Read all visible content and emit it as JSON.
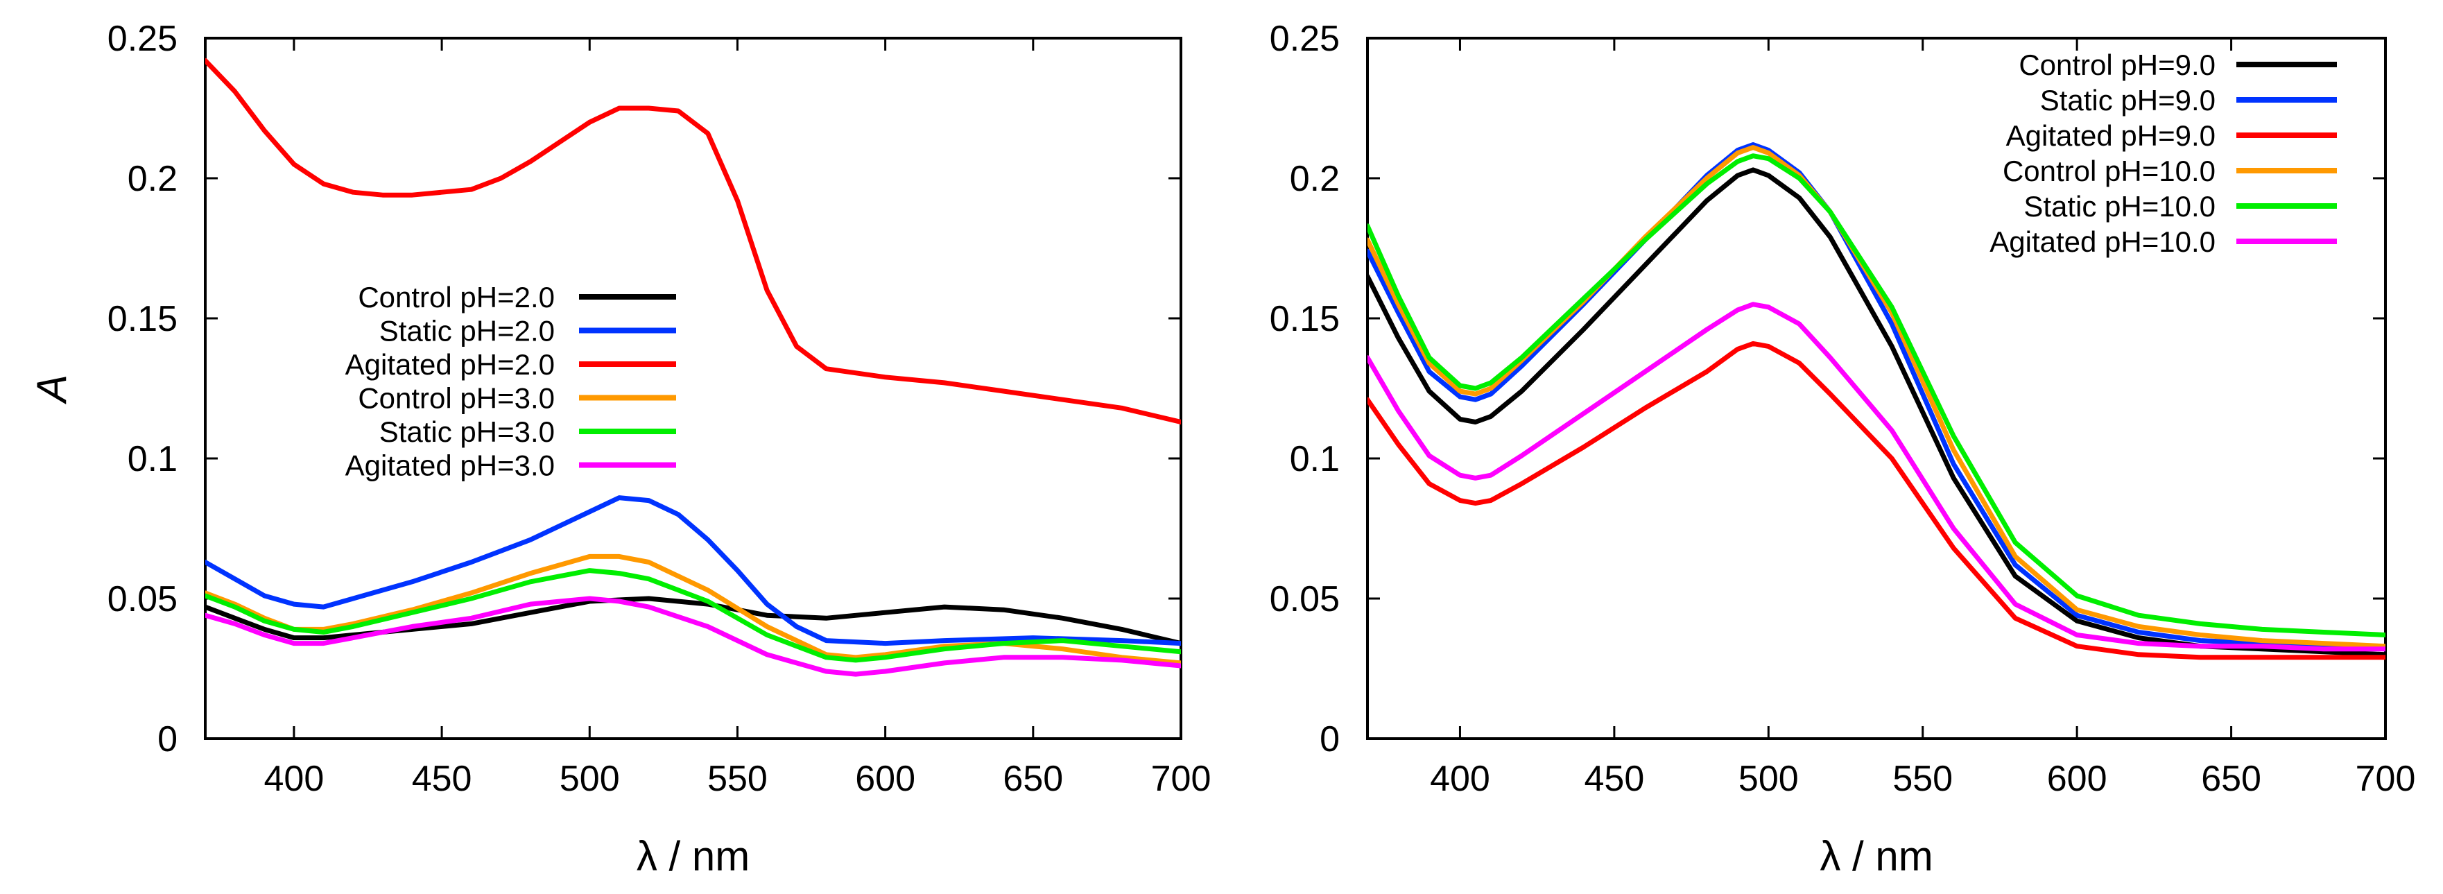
{
  "chart_data": [
    {
      "type": "line",
      "title": "",
      "xlabel": "λ / nm",
      "ylabel": "A",
      "xlim": [
        370,
        700
      ],
      "ylim": [
        0,
        0.25
      ],
      "xticks": [
        "400",
        "450",
        "500",
        "550",
        "600",
        "650",
        "700"
      ],
      "yticks": [
        "0",
        "0.05",
        "0.1",
        "0.15",
        "0.2",
        "0.25"
      ],
      "legend_position": "middle-left",
      "series": [
        {
          "name": "Control pH=2.0",
          "color": "#000000",
          "x": [
            370,
            380,
            390,
            400,
            410,
            420,
            440,
            460,
            480,
            500,
            520,
            540,
            560,
            580,
            600,
            620,
            640,
            660,
            680,
            700
          ],
          "y": [
            0.047,
            0.043,
            0.039,
            0.036,
            0.036,
            0.037,
            0.039,
            0.041,
            0.045,
            0.049,
            0.05,
            0.048,
            0.044,
            0.043,
            0.045,
            0.047,
            0.046,
            0.043,
            0.039,
            0.034
          ]
        },
        {
          "name": "Static pH=2.0",
          "color": "#0033ff",
          "x": [
            370,
            380,
            390,
            400,
            410,
            420,
            440,
            460,
            480,
            500,
            510,
            520,
            530,
            540,
            550,
            560,
            570,
            580,
            600,
            620,
            650,
            680,
            700
          ],
          "y": [
            0.063,
            0.057,
            0.051,
            0.048,
            0.047,
            0.05,
            0.056,
            0.063,
            0.071,
            0.081,
            0.086,
            0.085,
            0.08,
            0.071,
            0.06,
            0.048,
            0.04,
            0.035,
            0.034,
            0.035,
            0.036,
            0.035,
            0.034
          ]
        },
        {
          "name": "Agitated pH=2.0",
          "color": "#ff0000",
          "x": [
            370,
            380,
            390,
            400,
            410,
            420,
            430,
            440,
            450,
            460,
            470,
            480,
            490,
            500,
            510,
            520,
            530,
            540,
            550,
            560,
            570,
            580,
            600,
            620,
            640,
            660,
            680,
            700
          ],
          "y": [
            0.242,
            0.231,
            0.217,
            0.205,
            0.198,
            0.195,
            0.194,
            0.194,
            0.195,
            0.196,
            0.2,
            0.206,
            0.213,
            0.22,
            0.225,
            0.225,
            0.224,
            0.216,
            0.192,
            0.16,
            0.14,
            0.132,
            0.129,
            0.127,
            0.124,
            0.121,
            0.118,
            0.113
          ]
        },
        {
          "name": "Control pH=3.0",
          "color": "#ff9900",
          "x": [
            370,
            380,
            390,
            400,
            410,
            420,
            440,
            460,
            480,
            500,
            510,
            520,
            540,
            560,
            580,
            590,
            600,
            620,
            640,
            660,
            680,
            700
          ],
          "y": [
            0.052,
            0.048,
            0.043,
            0.039,
            0.039,
            0.041,
            0.046,
            0.052,
            0.059,
            0.065,
            0.065,
            0.063,
            0.053,
            0.04,
            0.03,
            0.029,
            0.03,
            0.033,
            0.034,
            0.032,
            0.029,
            0.027
          ]
        },
        {
          "name": "Static pH=3.0",
          "color": "#00ee00",
          "x": [
            370,
            380,
            390,
            400,
            410,
            420,
            440,
            460,
            480,
            500,
            510,
            520,
            540,
            560,
            580,
            590,
            600,
            620,
            640,
            660,
            680,
            700
          ],
          "y": [
            0.051,
            0.047,
            0.042,
            0.039,
            0.038,
            0.04,
            0.045,
            0.05,
            0.056,
            0.06,
            0.059,
            0.057,
            0.049,
            0.037,
            0.029,
            0.028,
            0.029,
            0.032,
            0.034,
            0.035,
            0.033,
            0.031
          ]
        },
        {
          "name": "Agitated pH=3.0",
          "color": "#ff00ff",
          "x": [
            370,
            380,
            390,
            400,
            410,
            420,
            440,
            460,
            480,
            500,
            510,
            520,
            540,
            560,
            580,
            590,
            600,
            620,
            640,
            660,
            680,
            700
          ],
          "y": [
            0.044,
            0.041,
            0.037,
            0.034,
            0.034,
            0.036,
            0.04,
            0.043,
            0.048,
            0.05,
            0.049,
            0.047,
            0.04,
            0.03,
            0.024,
            0.023,
            0.024,
            0.027,
            0.029,
            0.029,
            0.028,
            0.026
          ]
        }
      ]
    },
    {
      "type": "line",
      "title": "",
      "xlabel": "λ / nm",
      "ylabel": "",
      "xlim": [
        370,
        700
      ],
      "ylim": [
        0,
        0.25
      ],
      "xticks": [
        "400",
        "450",
        "500",
        "550",
        "600",
        "650",
        "700"
      ],
      "yticks": [
        "0",
        "0.05",
        "0.1",
        "0.15",
        "0.2",
        "0.25"
      ],
      "legend_position": "top-right",
      "series": [
        {
          "name": "Control pH=9.0",
          "color": "#000000",
          "x": [
            370,
            380,
            390,
            400,
            405,
            410,
            420,
            440,
            460,
            480,
            490,
            495,
            500,
            510,
            520,
            540,
            560,
            580,
            600,
            620,
            640,
            660,
            680,
            700
          ],
          "y": [
            0.165,
            0.143,
            0.124,
            0.114,
            0.113,
            0.115,
            0.124,
            0.146,
            0.169,
            0.192,
            0.201,
            0.203,
            0.201,
            0.193,
            0.179,
            0.14,
            0.093,
            0.058,
            0.042,
            0.036,
            0.033,
            0.032,
            0.031,
            0.03
          ]
        },
        {
          "name": "Static pH=9.0",
          "color": "#0033ff",
          "x": [
            370,
            380,
            390,
            400,
            405,
            410,
            420,
            440,
            460,
            480,
            490,
            495,
            500,
            510,
            520,
            540,
            560,
            580,
            600,
            620,
            640,
            660,
            680,
            700
          ],
          "y": [
            0.174,
            0.152,
            0.131,
            0.122,
            0.121,
            0.123,
            0.133,
            0.155,
            0.178,
            0.201,
            0.21,
            0.212,
            0.21,
            0.202,
            0.188,
            0.148,
            0.098,
            0.062,
            0.044,
            0.038,
            0.035,
            0.034,
            0.033,
            0.032
          ]
        },
        {
          "name": "Agitated pH=9.0",
          "color": "#ff0000",
          "x": [
            370,
            380,
            390,
            400,
            405,
            410,
            420,
            440,
            460,
            480,
            490,
            495,
            500,
            510,
            520,
            540,
            560,
            580,
            600,
            620,
            640,
            660,
            680,
            700
          ],
          "y": [
            0.121,
            0.105,
            0.091,
            0.085,
            0.084,
            0.085,
            0.091,
            0.104,
            0.118,
            0.131,
            0.139,
            0.141,
            0.14,
            0.134,
            0.123,
            0.1,
            0.068,
            0.043,
            0.033,
            0.03,
            0.029,
            0.029,
            0.029,
            0.029
          ]
        },
        {
          "name": "Control pH=10.0",
          "color": "#ff9900",
          "x": [
            370,
            380,
            390,
            400,
            405,
            410,
            420,
            440,
            460,
            480,
            490,
            495,
            500,
            510,
            520,
            540,
            560,
            580,
            600,
            620,
            640,
            660,
            680,
            700
          ],
          "y": [
            0.178,
            0.155,
            0.134,
            0.124,
            0.123,
            0.125,
            0.135,
            0.156,
            0.179,
            0.2,
            0.209,
            0.211,
            0.209,
            0.201,
            0.188,
            0.152,
            0.103,
            0.065,
            0.046,
            0.04,
            0.037,
            0.035,
            0.034,
            0.033
          ]
        },
        {
          "name": "Static pH=10.0",
          "color": "#00ee00",
          "x": [
            370,
            380,
            390,
            400,
            405,
            410,
            420,
            440,
            460,
            480,
            490,
            495,
            500,
            510,
            520,
            540,
            560,
            580,
            600,
            620,
            640,
            660,
            680,
            700
          ],
          "y": [
            0.183,
            0.158,
            0.136,
            0.126,
            0.125,
            0.127,
            0.136,
            0.157,
            0.178,
            0.198,
            0.206,
            0.208,
            0.207,
            0.2,
            0.188,
            0.154,
            0.108,
            0.07,
            0.051,
            0.044,
            0.041,
            0.039,
            0.038,
            0.037
          ]
        },
        {
          "name": "Agitated pH=10.0",
          "color": "#ff00ff",
          "x": [
            370,
            380,
            390,
            400,
            405,
            410,
            420,
            440,
            460,
            480,
            490,
            495,
            500,
            510,
            520,
            540,
            560,
            580,
            600,
            620,
            640,
            660,
            680,
            700
          ],
          "y": [
            0.136,
            0.117,
            0.101,
            0.094,
            0.093,
            0.094,
            0.101,
            0.116,
            0.131,
            0.146,
            0.153,
            0.155,
            0.154,
            0.148,
            0.136,
            0.11,
            0.075,
            0.048,
            0.037,
            0.034,
            0.033,
            0.033,
            0.032,
            0.032
          ]
        }
      ]
    }
  ]
}
